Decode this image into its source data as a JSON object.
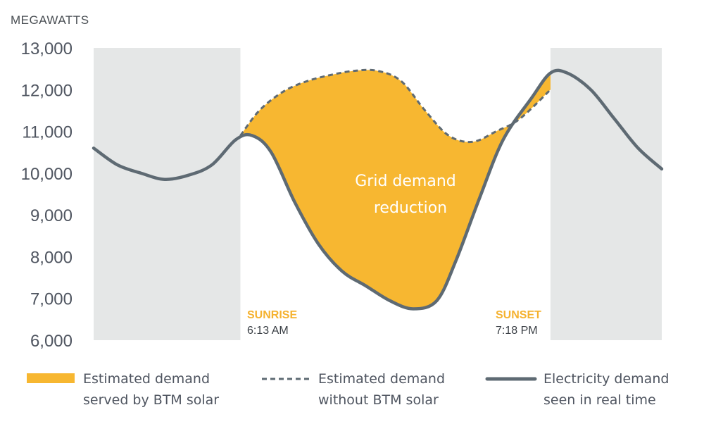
{
  "chart_data": {
    "type": "area",
    "ylabel": "MEGAWATTS",
    "ylim": [
      6000,
      13000
    ],
    "yticks": [
      13000,
      12000,
      11000,
      10000,
      9000,
      8000,
      7000,
      6000
    ],
    "ytick_labels": [
      "13,000",
      "12,000",
      "11,000",
      "10,000",
      "9,000",
      "8,000",
      "7,000",
      "6,000"
    ],
    "xlim": [
      0,
      24
    ],
    "night_shading": [
      [
        0,
        6.2
      ],
      [
        19.3,
        24
      ]
    ],
    "annotation": [
      "Grid demand",
      "reduction"
    ],
    "events": [
      {
        "name": "SUNRISE",
        "time": "6:13 AM",
        "hour": 6.22
      },
      {
        "name": "SUNSET",
        "time": "7:18 PM",
        "hour": 19.3
      }
    ],
    "series": [
      {
        "name": "Electricity demand seen in real time",
        "style": "solid",
        "x": [
          0,
          1,
          2,
          3,
          4,
          5,
          6,
          6.7,
          7.5,
          8.5,
          9.5,
          10.5,
          11.5,
          12.5,
          13.5,
          14.5,
          15.3,
          16.3,
          17.3,
          18.5,
          19.3,
          20,
          21,
          22,
          23,
          24
        ],
        "values": [
          10600,
          10200,
          10000,
          9850,
          9950,
          10200,
          10800,
          10900,
          10500,
          9300,
          8300,
          7650,
          7300,
          6950,
          6750,
          6950,
          7900,
          9400,
          10800,
          11800,
          12400,
          12400,
          12000,
          11300,
          10600,
          10100
        ]
      },
      {
        "name": "Estimated demand without BTM solar",
        "style": "dashed",
        "x": [
          6.2,
          7,
          8,
          9,
          10,
          11,
          12,
          13,
          14,
          15,
          16,
          17,
          18,
          19.3
        ],
        "values": [
          10900,
          11500,
          11950,
          12200,
          12350,
          12450,
          12450,
          12200,
          11500,
          10900,
          10750,
          11000,
          11300,
          12000
        ]
      }
    ],
    "legend": [
      {
        "key": "fill",
        "lines": [
          "Estimated demand",
          "served by BTM solar"
        ]
      },
      {
        "key": "dashed",
        "lines": [
          "Estimated demand",
          "without BTM solar"
        ]
      },
      {
        "key": "solid",
        "lines": [
          "Electricity demand",
          "seen in real time"
        ]
      }
    ],
    "colors": {
      "fill": "#f7b731",
      "line": "#5e6a73",
      "night": "#e5e7e7",
      "event": "#f5b22f"
    }
  }
}
